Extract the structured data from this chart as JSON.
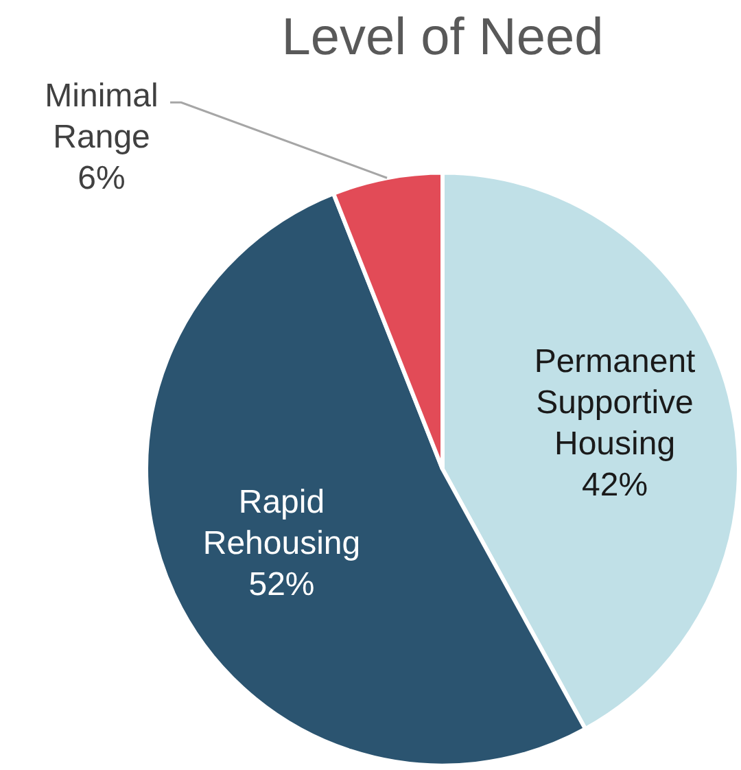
{
  "chart_data": {
    "type": "pie",
    "title": "Level of Need",
    "categories": [
      "Permanent Supportive Housing",
      "Rapid Rehousing",
      "Minimal Range"
    ],
    "values": [
      42,
      52,
      6
    ],
    "colors": [
      "#c0e0e7",
      "#2b5470",
      "#e24b57"
    ],
    "value_labels": [
      "42%",
      "52%",
      "6%"
    ],
    "legend": false
  }
}
